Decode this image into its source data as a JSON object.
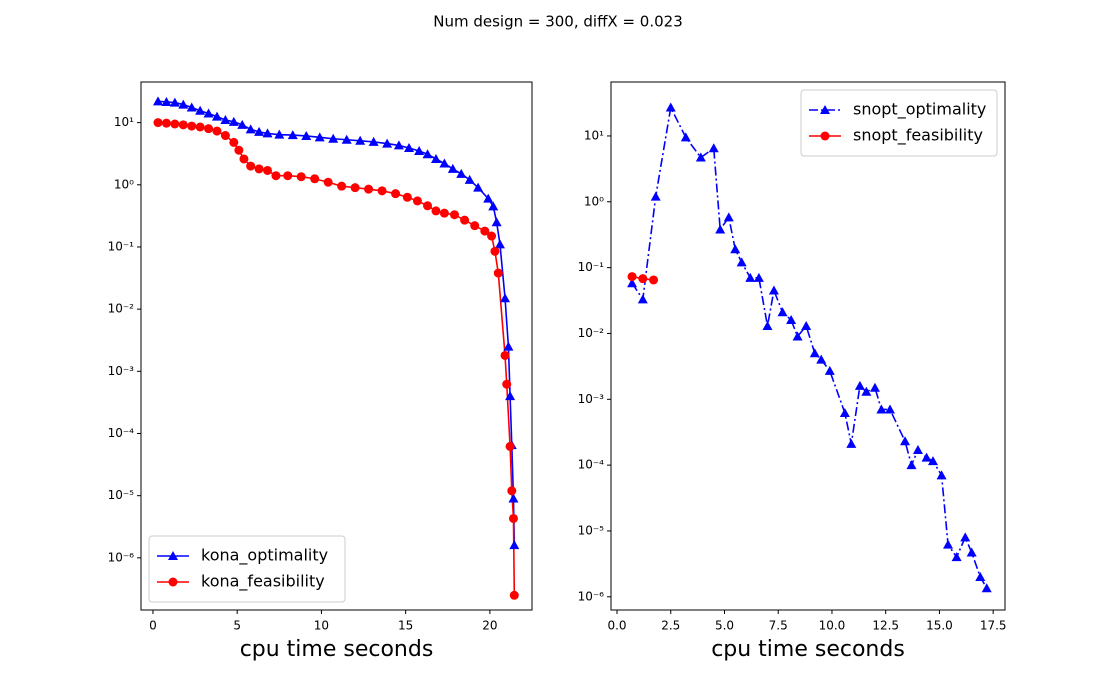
{
  "title": "Num design = 300, diffX = 0.023",
  "chart_data": [
    {
      "type": "line",
      "xlabel": "cpu time seconds",
      "yscale": "log",
      "legend": "lower left",
      "xlim": [
        -0.71,
        22.5
      ],
      "ylim": [
        1.45e-07,
        45
      ],
      "xticks": [
        0,
        5,
        10,
        15,
        20
      ],
      "yticks": [
        {
          "value": 1e-06,
          "label": "10⁻⁶"
        },
        {
          "value": 1e-05,
          "label": "10⁻⁵"
        },
        {
          "value": 0.0001,
          "label": "10⁻⁴"
        },
        {
          "value": 0.001,
          "label": "10⁻³"
        },
        {
          "value": 0.01,
          "label": "10⁻²"
        },
        {
          "value": 0.1,
          "label": "10⁻¹"
        },
        {
          "value": 1,
          "label": "10⁰"
        },
        {
          "value": 10,
          "label": "10¹"
        }
      ],
      "series": [
        {
          "name": "kona_optimality",
          "color": "#0000ff",
          "linestyle": "solid",
          "marker": "triangle",
          "x": [
            0.3,
            0.8,
            1.3,
            1.8,
            2.3,
            2.8,
            3.3,
            3.8,
            4.3,
            4.8,
            5.3,
            5.8,
            6.3,
            6.8,
            7.5,
            8.3,
            9.1,
            9.9,
            10.7,
            11.5,
            12.3,
            13.1,
            13.9,
            14.6,
            15.2,
            15.8,
            16.3,
            16.8,
            17.3,
            17.8,
            18.3,
            18.8,
            19.3,
            19.9,
            20.2,
            20.4,
            20.6,
            20.9,
            21.1,
            21.2,
            21.3,
            21.4,
            21.45
          ],
          "values": [
            22,
            21.5,
            21,
            19.5,
            17.5,
            15.5,
            14,
            12.5,
            11,
            10.3,
            9.2,
            7.8,
            7.1,
            6.7,
            6.4,
            6.3,
            6.1,
            5.8,
            5.5,
            5.3,
            5.1,
            4.9,
            4.6,
            4.3,
            3.9,
            3.5,
            3.1,
            2.6,
            2.2,
            1.8,
            1.5,
            1.2,
            0.9,
            0.6,
            0.45,
            0.25,
            0.11,
            0.015,
            0.0025,
            0.0004,
            6.5e-05,
            9e-06,
            1.6e-06
          ]
        },
        {
          "name": "kona_feasibility",
          "color": "#ff0000",
          "linestyle": "solid",
          "marker": "circle",
          "x": [
            0.3,
            0.8,
            1.3,
            1.8,
            2.3,
            2.8,
            3.3,
            3.8,
            4.3,
            4.8,
            5.1,
            5.4,
            5.8,
            6.3,
            6.8,
            7.3,
            8.0,
            8.8,
            9.6,
            10.4,
            11.2,
            12.0,
            12.8,
            13.6,
            14.4,
            15.1,
            15.7,
            16.3,
            16.8,
            17.3,
            17.9,
            18.5,
            19.1,
            19.7,
            20.1,
            20.3,
            20.5,
            20.9,
            21.0,
            21.2,
            21.3,
            21.4,
            21.45
          ],
          "values": [
            10,
            9.8,
            9.5,
            9.2,
            8.8,
            8.5,
            8.0,
            7.3,
            6.2,
            4.8,
            3.6,
            2.6,
            2.0,
            1.8,
            1.7,
            1.4,
            1.4,
            1.35,
            1.25,
            1.1,
            0.95,
            0.9,
            0.85,
            0.8,
            0.72,
            0.63,
            0.55,
            0.46,
            0.38,
            0.35,
            0.33,
            0.27,
            0.22,
            0.18,
            0.15,
            0.085,
            0.038,
            0.0018,
            0.00062,
            6.2e-05,
            1.2e-05,
            4.3e-06,
            2.5e-07
          ]
        }
      ]
    },
    {
      "type": "line",
      "xlabel": "cpu time seconds",
      "yscale": "log",
      "legend": "upper right",
      "xlim": [
        -0.28,
        18.05
      ],
      "ylim": [
        6.3e-07,
        66
      ],
      "xticks": [
        {
          "value": 0,
          "label": "0.0"
        },
        2.5,
        {
          "value": 5,
          "label": "5.0"
        },
        7.5,
        {
          "value": 10,
          "label": "10.0"
        },
        12.5,
        {
          "value": 15,
          "label": "15.0"
        },
        17.5
      ],
      "yticks": [
        {
          "value": 1e-06,
          "label": "10⁻⁶"
        },
        {
          "value": 1e-05,
          "label": "10⁻⁵"
        },
        {
          "value": 0.0001,
          "label": "10⁻⁴"
        },
        {
          "value": 0.001,
          "label": "10⁻³"
        },
        {
          "value": 0.01,
          "label": "10⁻²"
        },
        {
          "value": 0.1,
          "label": "10⁻¹"
        },
        {
          "value": 1,
          "label": "10⁰"
        },
        {
          "value": 10,
          "label": "10¹"
        }
      ],
      "series": [
        {
          "name": "snopt_optimality",
          "color": "#0000ff",
          "linestyle": "dashdot",
          "marker": "triangle",
          "x": [
            0.7,
            1.2,
            1.8,
            2.5,
            3.2,
            3.9,
            4.5,
            4.8,
            5.2,
            5.5,
            5.8,
            6.2,
            6.6,
            7.0,
            7.3,
            7.7,
            8.1,
            8.4,
            8.8,
            9.2,
            9.5,
            9.9,
            10.6,
            10.9,
            11.3,
            11.6,
            12.0,
            12.3,
            12.7,
            13.4,
            13.7,
            14.0,
            14.4,
            14.7,
            15.1,
            15.4,
            15.8,
            16.2,
            16.5,
            16.9,
            17.2
          ],
          "values": [
            0.058,
            0.033,
            1.2,
            27,
            9.5,
            4.7,
            6.5,
            0.38,
            0.58,
            0.19,
            0.12,
            0.07,
            0.07,
            0.013,
            0.045,
            0.021,
            0.016,
            0.009,
            0.013,
            0.005,
            0.004,
            0.0027,
            0.00062,
            0.00021,
            0.0016,
            0.0013,
            0.0015,
            0.0007,
            0.0007,
            0.00023,
            0.0001,
            0.00017,
            0.00013,
            0.000115,
            7e-05,
            6.2e-06,
            4e-06,
            8e-06,
            4.7e-06,
            2e-06,
            1.35e-06
          ]
        },
        {
          "name": "snopt_feasibility",
          "color": "#ff0000",
          "linestyle": "solid",
          "marker": "circle",
          "x": [
            0.7,
            1.2,
            1.7
          ],
          "values": [
            0.073,
            0.068,
            0.065
          ]
        }
      ]
    }
  ]
}
